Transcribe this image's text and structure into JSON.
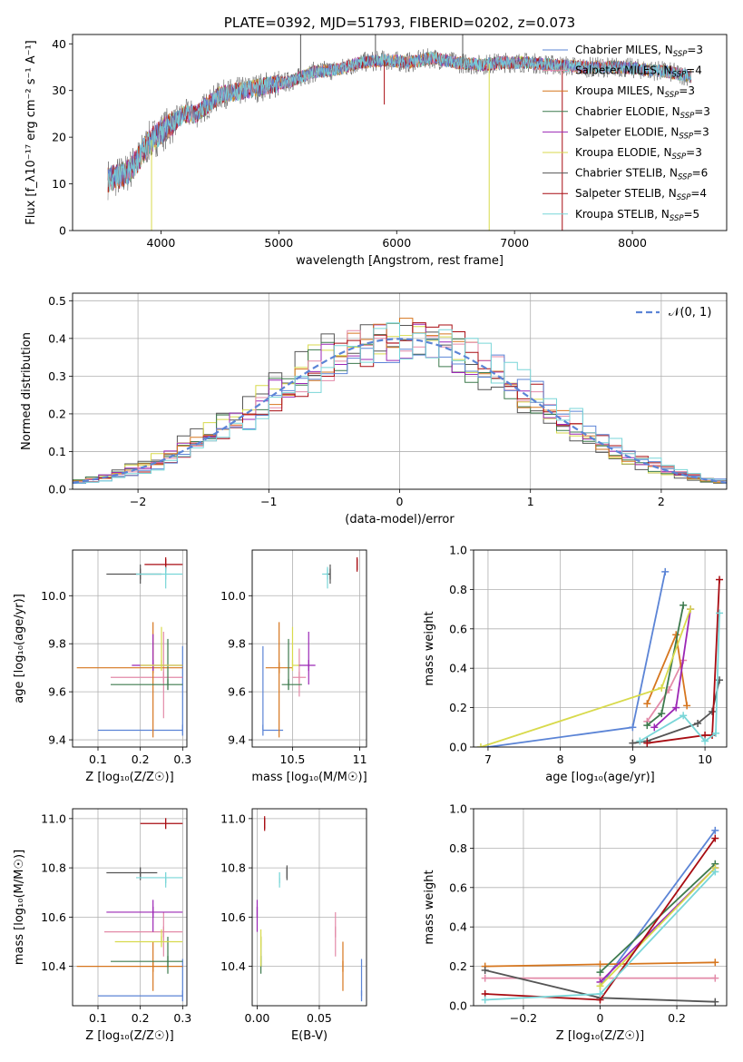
{
  "colors": {
    "chabrier_miles": "#5b84d6",
    "salpeter_miles": "#e38aa8",
    "kroupa_miles": "#d6761e",
    "chabrier_elodie": "#3d7a4d",
    "salpeter_elodie": "#9b27b5",
    "kroupa_elodie": "#d8da4c",
    "chabrier_stelib": "#555555",
    "salpeter_stelib": "#a80c12",
    "kroupa_stelib": "#79d6d8"
  },
  "chart_data": [
    {
      "id": "spectrum",
      "type": "line",
      "title": "PLATE=0392, MJD=51793, FIBERID=0202, z=0.073",
      "xlabel": "wavelength [Angstrom, rest frame]",
      "ylabel": "Flux [f_λ10⁻¹⁷ erg cm⁻² s⁻¹ A⁻¹]",
      "xlim": [
        3250,
        8800
      ],
      "ylim": [
        0,
        42
      ],
      "xticks": [
        4000,
        5000,
        6000,
        7000,
        8000
      ],
      "yticks": [
        0,
        10,
        20,
        30,
        40
      ],
      "grid": false,
      "legend_position": "top-right",
      "legend": [
        {
          "key": "chabrier_miles",
          "label_main": "Chabrier MILES, N",
          "label_sub": "SSP",
          "label_end": "=3"
        },
        {
          "key": "salpeter_miles",
          "label_main": "Salpeter MILES, N",
          "label_sub": "SSP",
          "label_end": "=4"
        },
        {
          "key": "kroupa_miles",
          "label_main": "Kroupa MILES, N",
          "label_sub": "SSP",
          "label_end": "=3"
        },
        {
          "key": "chabrier_elodie",
          "label_main": "Chabrier ELODIE, N",
          "label_sub": "SSP",
          "label_end": "=3"
        },
        {
          "key": "salpeter_elodie",
          "label_main": "Salpeter ELODIE, N",
          "label_sub": "SSP",
          "label_end": "=3"
        },
        {
          "key": "kroupa_elodie",
          "label_main": "Kroupa ELODIE, N",
          "label_sub": "SSP",
          "label_end": "=3"
        },
        {
          "key": "chabrier_stelib",
          "label_main": "Chabrier STELIB, N",
          "label_sub": "SSP",
          "label_end": "=6"
        },
        {
          "key": "salpeter_stelib",
          "label_main": "Salpeter STELIB, N",
          "label_sub": "SSP",
          "label_end": "=4"
        },
        {
          "key": "kroupa_stelib",
          "label_main": "Kroupa STELIB, N",
          "label_sub": "SSP",
          "label_end": "=5"
        }
      ],
      "continuum": [
        [
          3550,
          11
        ],
        [
          3700,
          12
        ],
        [
          3800,
          15
        ],
        [
          3900,
          19
        ],
        [
          4000,
          21
        ],
        [
          4100,
          23
        ],
        [
          4200,
          25
        ],
        [
          4300,
          25
        ],
        [
          4400,
          27
        ],
        [
          4500,
          29
        ],
        [
          4700,
          30
        ],
        [
          4900,
          31
        ],
        [
          5100,
          32
        ],
        [
          5300,
          34
        ],
        [
          5500,
          34.5
        ],
        [
          5700,
          36
        ],
        [
          5900,
          36.5
        ],
        [
          6100,
          36
        ],
        [
          6300,
          37
        ],
        [
          6500,
          36
        ],
        [
          6700,
          35.5
        ],
        [
          6900,
          36
        ],
        [
          7100,
          36
        ],
        [
          7300,
          35.5
        ],
        [
          7600,
          35
        ],
        [
          7900,
          35
        ],
        [
          8100,
          34.5
        ],
        [
          8300,
          34
        ],
        [
          8500,
          33
        ]
      ],
      "spikes": [
        [
          5185,
          42
        ],
        [
          5820,
          42
        ],
        [
          6560,
          42
        ],
        [
          3920,
          0
        ],
        [
          6785,
          0
        ],
        [
          7405,
          0
        ],
        [
          5895,
          27
        ]
      ]
    },
    {
      "id": "residuals",
      "type": "histogram",
      "xlabel": "(data-model)/error",
      "ylabel": "Normed distribution",
      "xlim": [
        -2.5,
        2.5
      ],
      "ylim": [
        0,
        0.52
      ],
      "xticks": [
        -2,
        -1,
        0,
        1,
        2
      ],
      "yticks": [
        0.0,
        0.1,
        0.2,
        0.3,
        0.4,
        0.5
      ],
      "grid": true,
      "legend_position": "top-right",
      "legend_label": "𝒩(0, 1)",
      "reference": {
        "mean": 0,
        "std": 1
      }
    },
    {
      "id": "age_vs_z",
      "type": "errorbar",
      "xlabel": "Z [log₁₀(Z/Z☉)]",
      "ylabel": "age  [log₁₀(age/yr)]",
      "xlim": [
        0.04,
        0.31
      ],
      "ylim": [
        9.37,
        10.19
      ],
      "xticks": [
        0.1,
        0.2,
        0.3
      ],
      "yticks": [
        9.4,
        9.6,
        9.8,
        10.0
      ],
      "grid": true,
      "points": [
        {
          "key": "chabrier_miles",
          "x": 0.3,
          "xerr": [
            0.2,
            0.0
          ],
          "y": 9.44,
          "yerr": [
            0.0,
            0.35
          ]
        },
        {
          "key": "salpeter_miles",
          "x": 0.255,
          "xerr": [
            0.125,
            0.045
          ],
          "y": 9.66,
          "yerr": [
            0.17,
            0.19
          ]
        },
        {
          "key": "kroupa_miles",
          "x": 0.23,
          "xerr": [
            0.18,
            0.07
          ],
          "y": 9.7,
          "yerr": [
            0.29,
            0.19
          ]
        },
        {
          "key": "chabrier_elodie",
          "x": 0.265,
          "xerr": [
            0.135,
            0.035
          ],
          "y": 9.63,
          "yerr": [
            0.0,
            0.19
          ]
        },
        {
          "key": "salpeter_elodie",
          "x": 0.23,
          "xerr": [
            0.05,
            0.07
          ],
          "y": 9.71,
          "yerr": [
            0.0,
            0.13
          ]
        },
        {
          "key": "kroupa_elodie",
          "x": 0.25,
          "xerr": [
            0.05,
            0.05
          ],
          "y": 9.71,
          "yerr": [
            0.0,
            0.16
          ]
        },
        {
          "key": "chabrier_stelib",
          "x": 0.2,
          "xerr": [
            0.08,
            0.05
          ],
          "y": 10.09,
          "yerr": [
            0.04,
            0.04
          ]
        },
        {
          "key": "salpeter_stelib",
          "x": 0.26,
          "xerr": [
            0.05,
            0.04
          ],
          "y": 10.13,
          "yerr": [
            0.03,
            0.03
          ]
        },
        {
          "key": "kroupa_stelib",
          "x": 0.26,
          "xerr": [
            0.07,
            0.04
          ],
          "y": 10.09,
          "yerr": [
            0.06,
            0.03
          ]
        }
      ]
    },
    {
      "id": "age_vs_mass",
      "type": "errorbar",
      "xlabel": "mass [log₁₀(M/M☉)]",
      "ylabel": "",
      "xlim": [
        10.2,
        11.05
      ],
      "ylim": [
        9.37,
        10.19
      ],
      "xticks": [
        10.5,
        11.0
      ],
      "yticks": [
        9.4,
        9.6,
        9.8,
        10.0
      ],
      "grid": true,
      "points": [
        {
          "key": "chabrier_miles",
          "x": 10.28,
          "xerr": [
            0.0,
            0.15
          ],
          "y": 9.44,
          "yerr": [
            0.0,
            0.35
          ]
        },
        {
          "key": "salpeter_miles",
          "x": 10.55,
          "xerr": [
            0.05,
            0.05
          ],
          "y": 9.66,
          "yerr": [
            0.08,
            0.12
          ]
        },
        {
          "key": "kroupa_miles",
          "x": 10.4,
          "xerr": [
            0.1,
            0.1
          ],
          "y": 9.7,
          "yerr": [
            0.29,
            0.19
          ]
        },
        {
          "key": "chabrier_elodie",
          "x": 10.47,
          "xerr": [
            0.05,
            0.1
          ],
          "y": 9.63,
          "yerr": [
            0.0,
            0.19
          ]
        },
        {
          "key": "salpeter_elodie",
          "x": 10.62,
          "xerr": [
            0.08,
            0.05
          ],
          "y": 9.71,
          "yerr": [
            0.08,
            0.14
          ]
        },
        {
          "key": "kroupa_elodie",
          "x": 10.5,
          "xerr": [
            0.0,
            0.05
          ],
          "y": 9.71,
          "yerr": [
            0.0,
            0.16
          ]
        },
        {
          "key": "chabrier_stelib",
          "x": 10.78,
          "xerr": [
            0.03,
            0.0
          ],
          "y": 10.09,
          "yerr": [
            0.04,
            0.04
          ]
        },
        {
          "key": "salpeter_stelib",
          "x": 10.98,
          "xerr": [
            0.0,
            0.0
          ],
          "y": 10.13,
          "yerr": [
            0.03,
            0.03
          ]
        },
        {
          "key": "kroupa_stelib",
          "x": 10.76,
          "xerr": [
            0.04,
            0.0
          ],
          "y": 10.09,
          "yerr": [
            0.06,
            0.03
          ]
        }
      ]
    },
    {
      "id": "weight_vs_age",
      "type": "line",
      "xlabel": "age  [log₁₀(age/yr)]",
      "ylabel": "mass weight",
      "xlim": [
        6.8,
        10.3
      ],
      "ylim": [
        0,
        1.0
      ],
      "xticks": [
        7,
        8,
        9,
        10
      ],
      "yticks": [
        0.0,
        0.2,
        0.4,
        0.6,
        0.8,
        1.0
      ],
      "grid": true,
      "series": [
        {
          "key": "chabrier_miles",
          "x": [
            7.0,
            9.0,
            9.45
          ],
          "y": [
            0.0,
            0.1,
            0.89
          ]
        },
        {
          "key": "salpeter_miles",
          "x": [
            9.2,
            9.5,
            9.7
          ],
          "y": [
            0.13,
            0.29,
            0.44
          ]
        },
        {
          "key": "kroupa_miles",
          "x": [
            9.2,
            9.6,
            9.75
          ],
          "y": [
            0.22,
            0.57,
            0.21
          ]
        },
        {
          "key": "chabrier_elodie",
          "x": [
            9.2,
            9.4,
            9.7
          ],
          "y": [
            0.11,
            0.17,
            0.72
          ]
        },
        {
          "key": "salpeter_elodie",
          "x": [
            9.3,
            9.6,
            9.8
          ],
          "y": [
            0.1,
            0.2,
            0.7
          ]
        },
        {
          "key": "kroupa_elodie",
          "x": [
            6.9,
            9.4,
            9.8
          ],
          "y": [
            0.0,
            0.3,
            0.7
          ]
        },
        {
          "key": "chabrier_stelib",
          "x": [
            9.0,
            9.2,
            9.9,
            10.1,
            10.2
          ],
          "y": [
            0.02,
            0.03,
            0.12,
            0.18,
            0.34
          ]
        },
        {
          "key": "salpeter_stelib",
          "x": [
            9.2,
            10.0,
            10.1,
            10.2
          ],
          "y": [
            0.02,
            0.06,
            0.06,
            0.85
          ]
        },
        {
          "key": "kroupa_stelib",
          "x": [
            9.1,
            9.7,
            10.0,
            10.15,
            10.2
          ],
          "y": [
            0.03,
            0.16,
            0.03,
            0.07,
            0.68
          ]
        }
      ]
    },
    {
      "id": "mass_vs_z",
      "type": "errorbar",
      "xlabel": "Z [log₁₀(Z/Z☉)]",
      "ylabel": "mass [log₁₀(M/M☉)]",
      "xlim": [
        0.04,
        0.31
      ],
      "ylim": [
        10.24,
        11.04
      ],
      "xticks": [
        0.1,
        0.2,
        0.3
      ],
      "yticks": [
        10.4,
        10.6,
        10.8,
        11.0
      ],
      "grid": true,
      "points": [
        {
          "key": "chabrier_miles",
          "x": 0.3,
          "xerr": [
            0.2,
            0.0
          ],
          "y": 10.28,
          "yerr": [
            0.0,
            0.15
          ]
        },
        {
          "key": "salpeter_miles",
          "x": 0.255,
          "xerr": [
            0.14,
            0.045
          ],
          "y": 10.54,
          "yerr": [
            0.1,
            0.08
          ]
        },
        {
          "key": "kroupa_miles",
          "x": 0.23,
          "xerr": [
            0.18,
            0.07
          ],
          "y": 10.4,
          "yerr": [
            0.1,
            0.1
          ]
        },
        {
          "key": "chabrier_elodie",
          "x": 0.265,
          "xerr": [
            0.135,
            0.035
          ],
          "y": 10.42,
          "yerr": [
            0.05,
            0.1
          ]
        },
        {
          "key": "salpeter_elodie",
          "x": 0.23,
          "xerr": [
            0.11,
            0.07
          ],
          "y": 10.62,
          "yerr": [
            0.08,
            0.05
          ]
        },
        {
          "key": "kroupa_elodie",
          "x": 0.25,
          "xerr": [
            0.11,
            0.05
          ],
          "y": 10.5,
          "yerr": [
            0.0,
            0.05
          ]
        },
        {
          "key": "chabrier_stelib",
          "x": 0.2,
          "xerr": [
            0.08,
            0.04
          ],
          "y": 10.78,
          "yerr": [
            0.03,
            0.0
          ]
        },
        {
          "key": "salpeter_stelib",
          "x": 0.26,
          "xerr": [
            0.06,
            0.04
          ],
          "y": 10.98,
          "yerr": [
            0.0,
            0.0
          ]
        },
        {
          "key": "kroupa_stelib",
          "x": 0.26,
          "xerr": [
            0.07,
            0.04
          ],
          "y": 10.76,
          "yerr": [
            0.04,
            0.0
          ]
        }
      ]
    },
    {
      "id": "mass_vs_ebv",
      "type": "errorbar",
      "xlabel": "E(B-V)",
      "ylabel": "",
      "xlim": [
        -0.004,
        0.088
      ],
      "ylim": [
        10.24,
        11.04
      ],
      "xticks": [
        0.0,
        0.05
      ],
      "yticks": [
        10.4,
        10.6,
        10.8,
        11.0
      ],
      "grid": true,
      "points": [
        {
          "key": "chabrier_miles",
          "x": 0.084,
          "xerr": [
            0,
            0
          ],
          "y": 10.28,
          "yerr": [
            0.0,
            0.15
          ]
        },
        {
          "key": "salpeter_miles",
          "x": 0.063,
          "xerr": [
            0,
            0
          ],
          "y": 10.54,
          "yerr": [
            0.1,
            0.08
          ]
        },
        {
          "key": "kroupa_miles",
          "x": 0.069,
          "xerr": [
            0,
            0
          ],
          "y": 10.4,
          "yerr": [
            0.1,
            0.1
          ]
        },
        {
          "key": "chabrier_elodie",
          "x": 0.003,
          "xerr": [
            0,
            0
          ],
          "y": 10.42,
          "yerr": [
            0.05,
            0.1
          ]
        },
        {
          "key": "salpeter_elodie",
          "x": 0.0,
          "xerr": [
            0,
            0
          ],
          "y": 10.62,
          "yerr": [
            0.08,
            0.05
          ]
        },
        {
          "key": "kroupa_elodie",
          "x": 0.003,
          "xerr": [
            0,
            0
          ],
          "y": 10.5,
          "yerr": [
            0.1,
            0.05
          ]
        },
        {
          "key": "chabrier_stelib",
          "x": 0.024,
          "xerr": [
            0,
            0
          ],
          "y": 10.78,
          "yerr": [
            0.03,
            0.03
          ]
        },
        {
          "key": "salpeter_stelib",
          "x": 0.006,
          "xerr": [
            0,
            0
          ],
          "y": 10.98,
          "yerr": [
            0.03,
            0.03
          ]
        },
        {
          "key": "kroupa_stelib",
          "x": 0.018,
          "xerr": [
            0,
            0
          ],
          "y": 10.76,
          "yerr": [
            0.04,
            0.0
          ]
        }
      ]
    },
    {
      "id": "weight_vs_z",
      "type": "line",
      "xlabel": "Z [log₁₀(Z/Z☉)]",
      "ylabel": "mass weight",
      "xlim": [
        -0.33,
        0.33
      ],
      "ylim": [
        0,
        1.0
      ],
      "xticks": [
        -0.2,
        0.0,
        0.2
      ],
      "yticks": [
        0.0,
        0.2,
        0.4,
        0.6,
        0.8,
        1.0
      ],
      "grid": true,
      "series": [
        {
          "key": "chabrier_miles",
          "x": [
            0.0,
            0.3
          ],
          "y": [
            0.1,
            0.89
          ]
        },
        {
          "key": "salpeter_miles",
          "x": [
            -0.3,
            0.0,
            0.3
          ],
          "y": [
            0.14,
            0.14,
            0.14
          ]
        },
        {
          "key": "kroupa_miles",
          "x": [
            -0.3,
            0.0,
            0.3
          ],
          "y": [
            0.2,
            0.21,
            0.22
          ]
        },
        {
          "key": "chabrier_elodie",
          "x": [
            0.0,
            0.3
          ],
          "y": [
            0.17,
            0.72
          ]
        },
        {
          "key": "salpeter_elodie",
          "x": [
            0.0,
            0.3
          ],
          "y": [
            0.12,
            0.7
          ]
        },
        {
          "key": "kroupa_elodie",
          "x": [
            0.0,
            0.3
          ],
          "y": [
            0.1,
            0.7
          ]
        },
        {
          "key": "chabrier_stelib",
          "x": [
            -0.3,
            0.0,
            0.3
          ],
          "y": [
            0.18,
            0.04,
            0.02
          ]
        },
        {
          "key": "salpeter_stelib",
          "x": [
            -0.3,
            0.0,
            0.3
          ],
          "y": [
            0.06,
            0.03,
            0.85
          ]
        },
        {
          "key": "kroupa_stelib",
          "x": [
            -0.3,
            0.0,
            0.3
          ],
          "y": [
            0.03,
            0.06,
            0.68
          ]
        }
      ]
    }
  ]
}
